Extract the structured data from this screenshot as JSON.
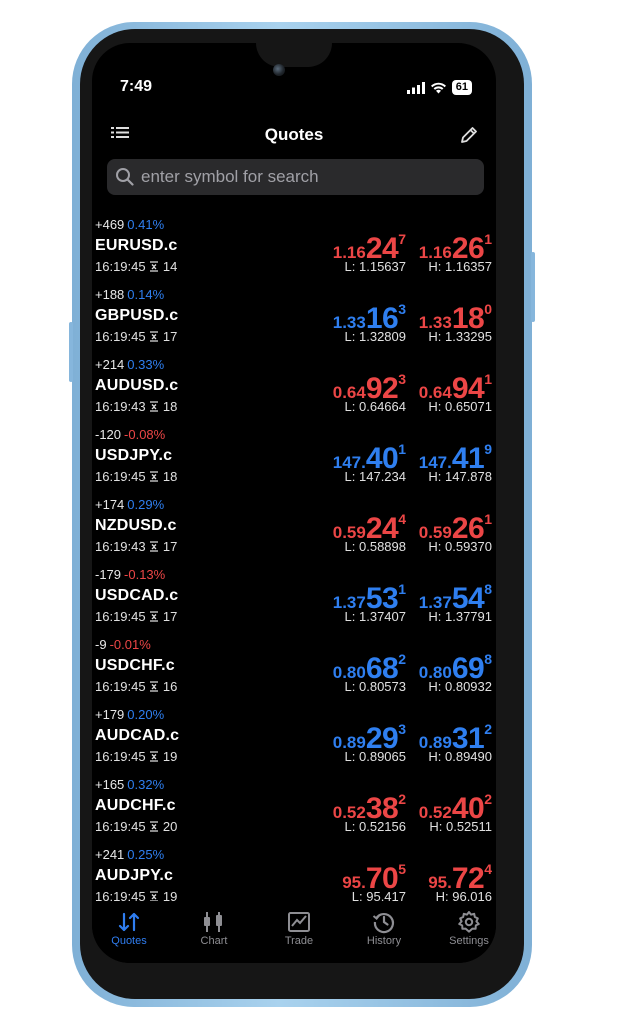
{
  "status_bar": {
    "time": "7:49",
    "battery": "61"
  },
  "header": {
    "title": "Quotes"
  },
  "search": {
    "placeholder": "enter symbol for search"
  },
  "colors": {
    "up": "#2f7ff0",
    "down": "#ec4646",
    "accent": "#2f7df0"
  },
  "quotes": [
    {
      "symbol": "EURUSD.c",
      "change": "+469",
      "percent": "0.41%",
      "direction": "up",
      "time": "16:19:45",
      "spread": "14",
      "bid": {
        "small": "1.16",
        "big": "24",
        "sup": "7",
        "color": "down"
      },
      "ask": {
        "small": "1.16",
        "big": "26",
        "sup": "1",
        "color": "down"
      },
      "low": "L: 1.15637",
      "high": "H: 1.16357"
    },
    {
      "symbol": "GBPUSD.c",
      "change": "+188",
      "percent": "0.14%",
      "direction": "up",
      "time": "16:19:45",
      "spread": "17",
      "bid": {
        "small": "1.33",
        "big": "16",
        "sup": "3",
        "color": "up"
      },
      "ask": {
        "small": "1.33",
        "big": "18",
        "sup": "0",
        "color": "down"
      },
      "low": "L: 1.32809",
      "high": "H: 1.33295"
    },
    {
      "symbol": "AUDUSD.c",
      "change": "+214",
      "percent": "0.33%",
      "direction": "up",
      "time": "16:19:43",
      "spread": "18",
      "bid": {
        "small": "0.64",
        "big": "92",
        "sup": "3",
        "color": "down"
      },
      "ask": {
        "small": "0.64",
        "big": "94",
        "sup": "1",
        "color": "down"
      },
      "low": "L: 0.64664",
      "high": "H: 0.65071"
    },
    {
      "symbol": "USDJPY.c",
      "change": "-120",
      "percent": "-0.08%",
      "direction": "down",
      "time": "16:19:45",
      "spread": "18",
      "bid": {
        "small": "147.",
        "big": "40",
        "sup": "1",
        "color": "up"
      },
      "ask": {
        "small": "147.",
        "big": "41",
        "sup": "9",
        "color": "up"
      },
      "low": "L: 147.234",
      "high": "H: 147.878"
    },
    {
      "symbol": "NZDUSD.c",
      "change": "+174",
      "percent": "0.29%",
      "direction": "up",
      "time": "16:19:43",
      "spread": "17",
      "bid": {
        "small": "0.59",
        "big": "24",
        "sup": "4",
        "color": "down"
      },
      "ask": {
        "small": "0.59",
        "big": "26",
        "sup": "1",
        "color": "down"
      },
      "low": "L: 0.58898",
      "high": "H: 0.59370"
    },
    {
      "symbol": "USDCAD.c",
      "change": "-179",
      "percent": "-0.13%",
      "direction": "down",
      "time": "16:19:45",
      "spread": "17",
      "bid": {
        "small": "1.37",
        "big": "53",
        "sup": "1",
        "color": "up"
      },
      "ask": {
        "small": "1.37",
        "big": "54",
        "sup": "8",
        "color": "up"
      },
      "low": "L: 1.37407",
      "high": "H: 1.37791"
    },
    {
      "symbol": "USDCHF.c",
      "change": "-9",
      "percent": "-0.01%",
      "direction": "down",
      "time": "16:19:45",
      "spread": "16",
      "bid": {
        "small": "0.80",
        "big": "68",
        "sup": "2",
        "color": "up"
      },
      "ask": {
        "small": "0.80",
        "big": "69",
        "sup": "8",
        "color": "up"
      },
      "low": "L: 0.80573",
      "high": "H: 0.80932"
    },
    {
      "symbol": "AUDCAD.c",
      "change": "+179",
      "percent": "0.20%",
      "direction": "up",
      "time": "16:19:45",
      "spread": "19",
      "bid": {
        "small": "0.89",
        "big": "29",
        "sup": "3",
        "color": "up"
      },
      "ask": {
        "small": "0.89",
        "big": "31",
        "sup": "2",
        "color": "up"
      },
      "low": "L: 0.89065",
      "high": "H: 0.89490"
    },
    {
      "symbol": "AUDCHF.c",
      "change": "+165",
      "percent": "0.32%",
      "direction": "up",
      "time": "16:19:45",
      "spread": "20",
      "bid": {
        "small": "0.52",
        "big": "38",
        "sup": "2",
        "color": "down"
      },
      "ask": {
        "small": "0.52",
        "big": "40",
        "sup": "2",
        "color": "down"
      },
      "low": "L: 0.52156",
      "high": "H: 0.52511"
    },
    {
      "symbol": "AUDJPY.c",
      "change": "+241",
      "percent": "0.25%",
      "direction": "up",
      "time": "16:19:45",
      "spread": "19",
      "bid": {
        "small": "95.",
        "big": "70",
        "sup": "5",
        "color": "down"
      },
      "ask": {
        "small": "95.",
        "big": "72",
        "sup": "4",
        "color": "down"
      },
      "low": "L: 95.417",
      "high": "H: 96.016"
    }
  ],
  "tabs": [
    {
      "label": "Quotes",
      "icon": "quotes-icon",
      "active": true
    },
    {
      "label": "Chart",
      "icon": "chart-icon",
      "active": false
    },
    {
      "label": "Trade",
      "icon": "trade-icon",
      "active": false
    },
    {
      "label": "History",
      "icon": "history-icon",
      "active": false
    },
    {
      "label": "Settings",
      "icon": "settings-icon",
      "active": false
    }
  ]
}
